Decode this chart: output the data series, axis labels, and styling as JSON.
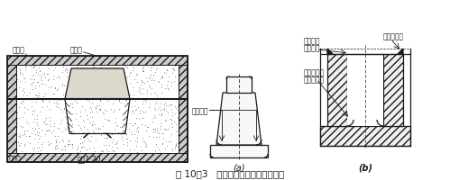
{
  "title": "图 10－3   铸件的拔模斜度和铸造圆角",
  "label_a": "(a)",
  "label_b": "(b)",
  "bg_color": "#ffffff",
  "lc": "#1a1a1a",
  "fs": 5.5,
  "fs_label": 7.0
}
